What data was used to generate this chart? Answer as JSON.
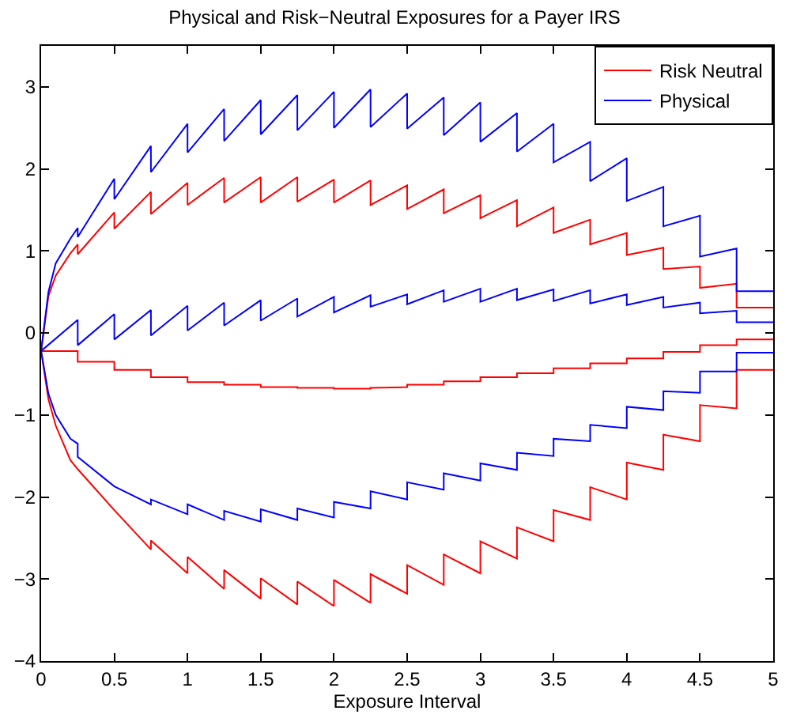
{
  "chart_data": {
    "type": "line",
    "title": "Physical and Risk−Neutral Exposures for a Payer IRS",
    "xlabel": "Exposure Interval",
    "xlim": [
      0,
      5
    ],
    "xticks": [
      0,
      0.5,
      1,
      1.5,
      2,
      2.5,
      3,
      3.5,
      4,
      4.5,
      5
    ],
    "ylim": [
      -4,
      3.5
    ],
    "yticks": [
      -4,
      -3,
      -2,
      -1,
      0,
      1,
      2,
      3
    ],
    "legend": "top right",
    "marker": "none",
    "line_style": "solid",
    "series": [
      {
        "name": "Risk Neutral",
        "color": "#ff0000",
        "x": [
          0,
          0.05,
          0.1,
          0.2,
          0.25,
          0.25,
          0.5,
          0.5,
          0.75,
          0.75,
          1,
          1,
          1.25,
          1.25,
          1.5,
          1.5,
          1.75,
          1.75,
          2,
          2,
          2.25,
          2.25,
          2.5,
          2.5,
          2.75,
          2.75,
          3,
          3,
          3.25,
          3.25,
          3.5,
          3.5,
          3.75,
          3.75,
          4,
          4,
          4.25,
          4.25,
          4.5,
          4.5,
          4.75,
          4.75,
          5,
          null,
          0,
          0.25,
          0.25,
          0.5,
          0.5,
          0.75,
          0.75,
          1,
          1,
          1.25,
          1.25,
          1.5,
          1.5,
          1.75,
          1.75,
          2,
          2,
          2.25,
          2.25,
          2.5,
          2.5,
          2.75,
          2.75,
          3,
          3,
          3.25,
          3.25,
          3.5,
          3.5,
          3.75,
          3.75,
          4,
          4,
          4.25,
          4.25,
          4.5,
          4.5,
          4.75,
          4.75,
          5,
          null,
          0,
          0.05,
          0.1,
          0.2,
          0.25,
          0.25,
          0.5,
          0.5,
          0.75,
          0.75,
          1,
          1,
          1.25,
          1.25,
          1.5,
          1.5,
          1.75,
          1.75,
          2,
          2,
          2.25,
          2.25,
          2.5,
          2.5,
          2.75,
          2.75,
          3,
          3,
          3.25,
          3.25,
          3.5,
          3.5,
          3.75,
          3.75,
          4,
          4,
          4.25,
          4.25,
          4.5,
          4.5,
          4.75,
          4.75,
          5
        ],
        "values": [
          -0.22,
          0.45,
          0.7,
          0.97,
          1.08,
          0.96,
          1.47,
          1.27,
          1.72,
          1.45,
          1.83,
          1.56,
          1.89,
          1.59,
          1.9,
          1.59,
          1.9,
          1.6,
          1.87,
          1.59,
          1.86,
          1.56,
          1.8,
          1.51,
          1.75,
          1.46,
          1.68,
          1.4,
          1.62,
          1.3,
          1.53,
          1.22,
          1.38,
          1.08,
          1.22,
          0.95,
          1.04,
          0.78,
          0.81,
          0.55,
          0.6,
          0.31,
          0.31,
          null,
          -0.22,
          -0.22,
          -0.35,
          -0.35,
          -0.45,
          -0.45,
          -0.54,
          -0.54,
          -0.6,
          -0.6,
          -0.63,
          -0.63,
          -0.66,
          -0.66,
          -0.67,
          -0.67,
          -0.68,
          -0.68,
          -0.67,
          -0.66,
          -0.63,
          -0.63,
          -0.59,
          -0.59,
          -0.54,
          -0.54,
          -0.49,
          -0.49,
          -0.43,
          -0.43,
          -0.37,
          -0.37,
          -0.31,
          -0.31,
          -0.23,
          -0.23,
          -0.15,
          -0.15,
          -0.08,
          -0.08,
          null,
          -0.22,
          -0.81,
          -1.13,
          -1.55,
          -1.66,
          -1.66,
          -2.16,
          -2.16,
          -2.64,
          -2.53,
          -2.93,
          -2.73,
          -3.12,
          -2.89,
          -3.24,
          -2.99,
          -3.31,
          -3.03,
          -3.33,
          -3.01,
          -3.29,
          -2.94,
          -3.18,
          -2.83,
          -3.07,
          -2.7,
          -2.93,
          -2.54,
          -2.75,
          -2.37,
          -2.54,
          -2.16,
          -2.28,
          -1.88,
          -2.03,
          -1.58,
          -1.67,
          -1.24,
          -1.32,
          -0.88,
          -0.92,
          -0.45,
          -0.45
        ]
      },
      {
        "name": "Physical",
        "color": "#0000ff",
        "x": [
          0,
          0.05,
          0.1,
          0.2,
          0.25,
          0.25,
          0.5,
          0.5,
          0.75,
          0.75,
          1,
          1,
          1.25,
          1.25,
          1.5,
          1.5,
          1.75,
          1.75,
          2,
          2,
          2.25,
          2.25,
          2.5,
          2.5,
          2.75,
          2.75,
          3,
          3,
          3.25,
          3.25,
          3.5,
          3.5,
          3.75,
          3.75,
          4,
          4,
          4.25,
          4.25,
          4.5,
          4.5,
          4.75,
          4.75,
          5,
          null,
          0,
          0.25,
          0.25,
          0.5,
          0.5,
          0.75,
          0.75,
          1,
          1,
          1.25,
          1.25,
          1.5,
          1.5,
          1.75,
          1.75,
          2,
          2,
          2.25,
          2.25,
          2.5,
          2.5,
          2.75,
          2.75,
          3,
          3,
          3.25,
          3.25,
          3.5,
          3.5,
          3.75,
          3.75,
          4,
          4,
          4.25,
          4.25,
          4.5,
          4.5,
          4.75,
          4.75,
          5,
          null,
          0,
          0.05,
          0.1,
          0.2,
          0.25,
          0.25,
          0.5,
          0.5,
          0.75,
          0.75,
          1,
          1,
          1.25,
          1.25,
          1.5,
          1.5,
          1.75,
          1.75,
          2,
          2,
          2.25,
          2.25,
          2.5,
          2.5,
          2.75,
          2.75,
          3,
          3,
          3.25,
          3.25,
          3.5,
          3.5,
          3.75,
          3.75,
          4,
          4,
          4.25,
          4.25,
          4.5,
          4.5,
          4.75,
          4.75,
          5
        ],
        "values": [
          -0.22,
          0.5,
          0.85,
          1.15,
          1.28,
          1.17,
          1.88,
          1.63,
          2.28,
          1.96,
          2.55,
          2.2,
          2.73,
          2.34,
          2.84,
          2.42,
          2.9,
          2.47,
          2.94,
          2.5,
          2.97,
          2.51,
          2.92,
          2.49,
          2.87,
          2.41,
          2.81,
          2.33,
          2.68,
          2.21,
          2.55,
          2.08,
          2.33,
          1.85,
          2.13,
          1.61,
          1.78,
          1.3,
          1.43,
          0.93,
          1.03,
          0.51,
          0.51,
          null,
          -0.22,
          0.16,
          -0.15,
          0.23,
          -0.08,
          0.28,
          -0.03,
          0.33,
          0.03,
          0.37,
          0.09,
          0.4,
          0.15,
          0.42,
          0.2,
          0.44,
          0.25,
          0.46,
          0.32,
          0.47,
          0.35,
          0.52,
          0.38,
          0.54,
          0.38,
          0.54,
          0.4,
          0.53,
          0.39,
          0.52,
          0.36,
          0.47,
          0.34,
          0.44,
          0.31,
          0.37,
          0.24,
          0.27,
          0.13,
          0.13,
          null,
          -0.22,
          -0.74,
          -1.0,
          -1.29,
          -1.35,
          -1.51,
          -1.87,
          -1.87,
          -2.09,
          -2.03,
          -2.21,
          -2.09,
          -2.28,
          -2.17,
          -2.3,
          -2.15,
          -2.28,
          -2.14,
          -2.25,
          -2.06,
          -2.14,
          -1.93,
          -2.03,
          -1.82,
          -1.91,
          -1.71,
          -1.8,
          -1.59,
          -1.67,
          -1.46,
          -1.5,
          -1.29,
          -1.32,
          -1.12,
          -1.16,
          -0.9,
          -0.94,
          -0.71,
          -0.73,
          -0.47,
          -0.47,
          -0.24,
          -0.24
        ]
      }
    ]
  }
}
